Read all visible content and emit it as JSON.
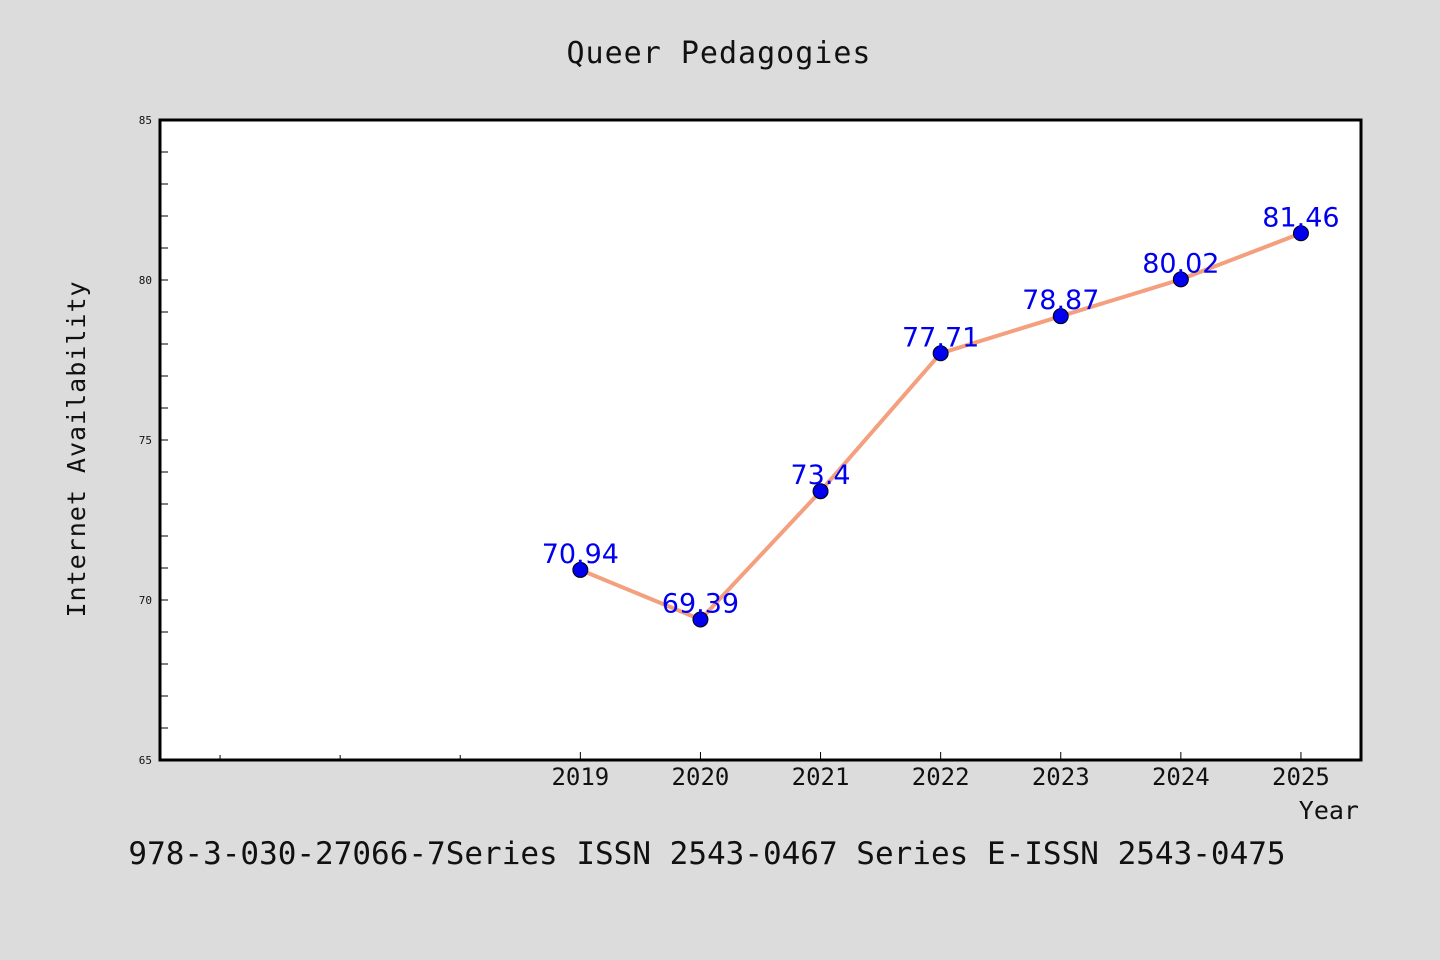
{
  "chart_data": {
    "type": "line",
    "title": "Queer Pedagogies",
    "xlabel": "Year",
    "ylabel": "Internet Availability",
    "x": [
      2019,
      2020,
      2021,
      2022,
      2023,
      2024,
      2025
    ],
    "series": [
      {
        "values": [
          70.94,
          69.39,
          73.4,
          77.71,
          78.87,
          80.02,
          81.46
        ],
        "labels": [
          "70.94",
          "69.39",
          "73.4",
          "77.71",
          "78.87",
          "80.02",
          "81.46"
        ]
      }
    ],
    "xlim": [
      2015.5,
      2025.5
    ],
    "ylim": [
      65,
      85
    ],
    "yticks": [
      65,
      70,
      75,
      80,
      85
    ],
    "xticks": [
      2019,
      2020,
      2021,
      2022,
      2023,
      2024,
      2025
    ],
    "grid": false,
    "legend": "none",
    "colors": {
      "line": "#f4a07e",
      "marker": "#0000ee",
      "label": "#0000ee",
      "background": "#dcdcdc",
      "plot_background": "#ffffff"
    }
  },
  "footer": "978-3-030-27066-7Series ISSN 2543-0467 Series E-ISSN 2543-0475"
}
